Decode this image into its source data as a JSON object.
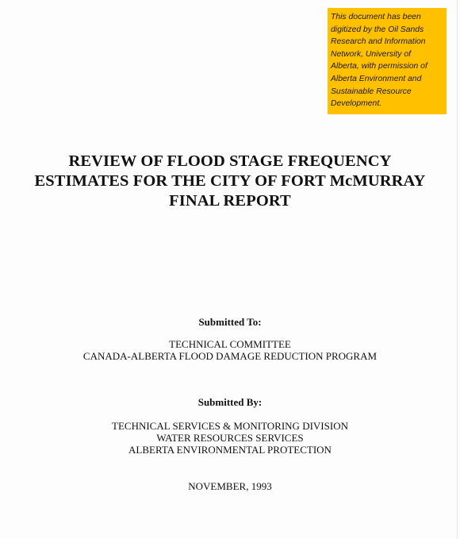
{
  "digitization_note": {
    "lines": [
      "This document has been",
      "digitized by the Oil Sands",
      "Research and Information",
      "Network, University of",
      "Alberta, with permission of",
      "Alberta Environment and",
      "Sustainable Resource",
      "Development."
    ],
    "background_color": "#ffc000"
  },
  "title": {
    "lines": [
      "REVIEW OF FLOOD STAGE FREQUENCY",
      "ESTIMATES FOR THE CITY OF FORT McMURRAY",
      "FINAL REPORT"
    ]
  },
  "submitted_to": {
    "heading": "Submitted To:",
    "lines": [
      "TECHNICAL COMMITTEE",
      "CANADA-ALBERTA FLOOD DAMAGE REDUCTION PROGRAM"
    ]
  },
  "submitted_by": {
    "heading": "Submitted By:",
    "lines": [
      "TECHNICAL SERVICES & MONITORING DIVISION",
      "WATER RESOURCES SERVICES",
      "ALBERTA ENVIRONMENTAL PROTECTION"
    ]
  },
  "date": "NOVEMBER, 1993"
}
